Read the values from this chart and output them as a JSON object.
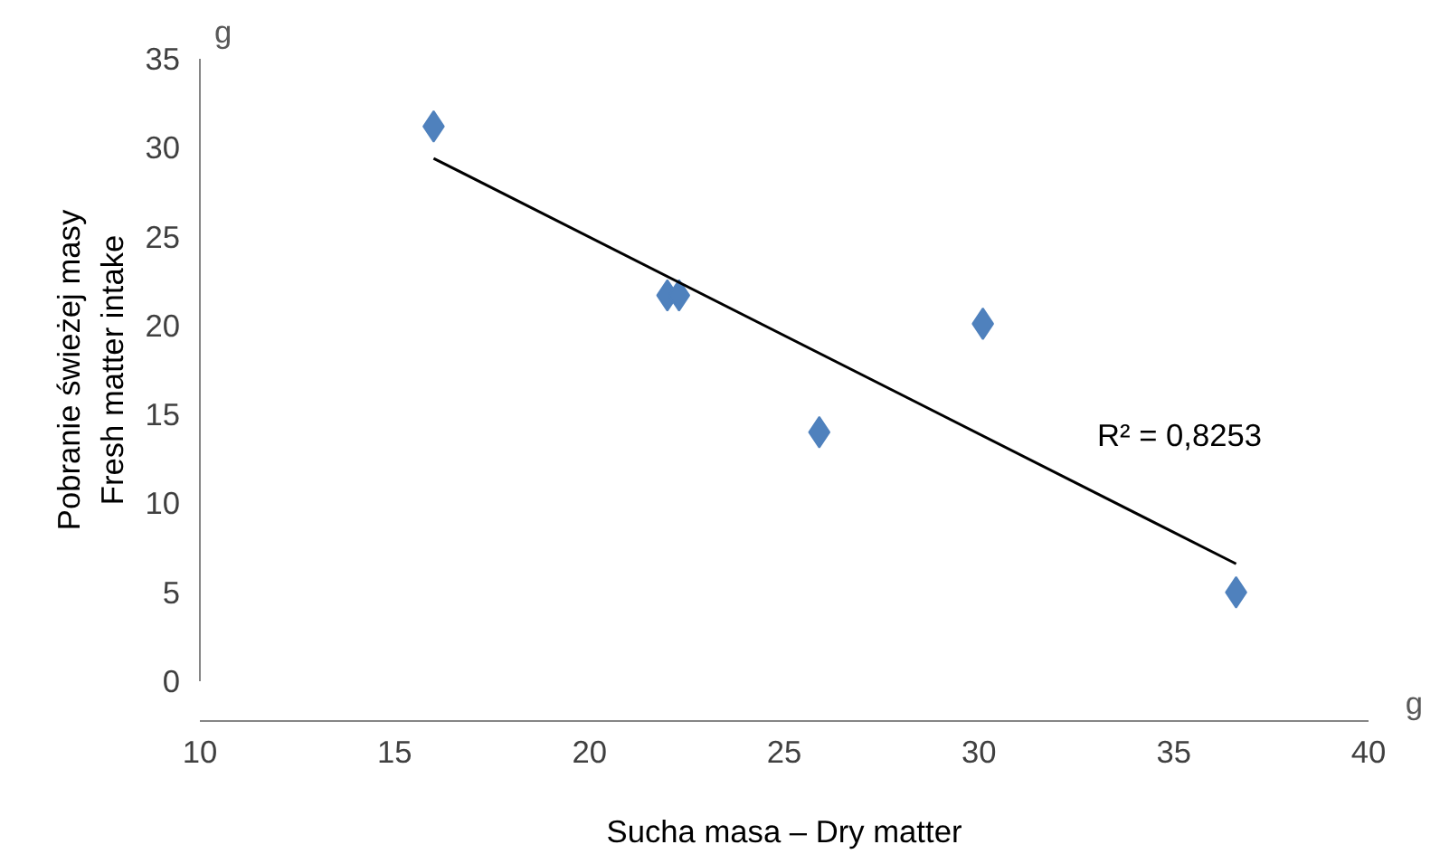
{
  "chart_data": {
    "type": "scatter",
    "xlabel": "Sucha masa – Dry matter",
    "ylabel": "Pobranie świeżej masy\nFresh matter intake",
    "xlim": [
      10,
      40
    ],
    "xticks": [
      10,
      15,
      20,
      25,
      30,
      35,
      40
    ],
    "ylim": [
      0,
      35
    ],
    "yticks": [
      0,
      5,
      10,
      15,
      20,
      25,
      30,
      35
    ],
    "grid": false,
    "series": [
      {
        "marker": "diamond",
        "color": "#4f81bd",
        "x": [
          16.0,
          22.0,
          22.3,
          25.9,
          30.1,
          36.6
        ],
        "values": [
          31.2,
          21.7,
          21.7,
          14.0,
          20.1,
          5.0
        ]
      },
      {
        "type": "line",
        "color": "#000000",
        "x": [
          16.0,
          36.6
        ],
        "values": [
          29.4,
          6.6
        ]
      }
    ],
    "annotations": [
      "g",
      "g",
      "R² = 0,8253"
    ]
  }
}
